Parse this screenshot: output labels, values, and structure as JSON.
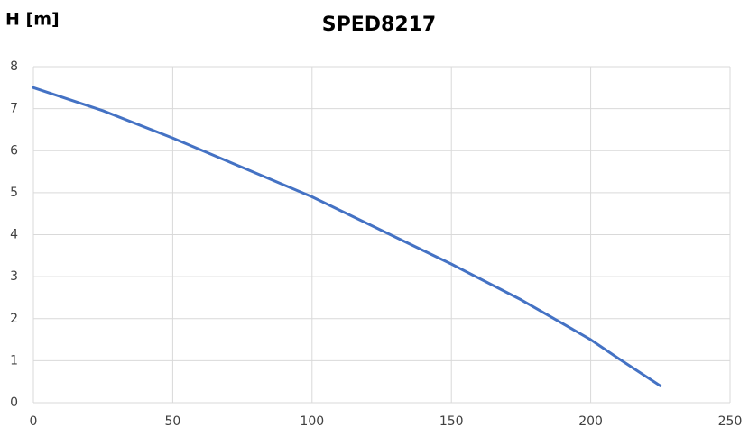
{
  "chart_data": {
    "type": "line",
    "title": "SPED8217",
    "y_label": "H [m]",
    "x": [
      0,
      25,
      50,
      75,
      100,
      125,
      150,
      175,
      200,
      210,
      225
    ],
    "series": [
      {
        "color": "#4472c4",
        "values": [
          7.5,
          6.95,
          6.3,
          5.6,
          4.9,
          4.1,
          3.3,
          2.45,
          1.5,
          1.05,
          0.4
        ]
      }
    ],
    "xlim": [
      0,
      250
    ],
    "xticks": [
      0,
      50,
      100,
      150,
      200,
      250
    ],
    "ylim": [
      0,
      8
    ],
    "yticks": [
      0,
      1,
      2,
      3,
      4,
      5,
      6,
      7,
      8
    ],
    "grid": true
  }
}
